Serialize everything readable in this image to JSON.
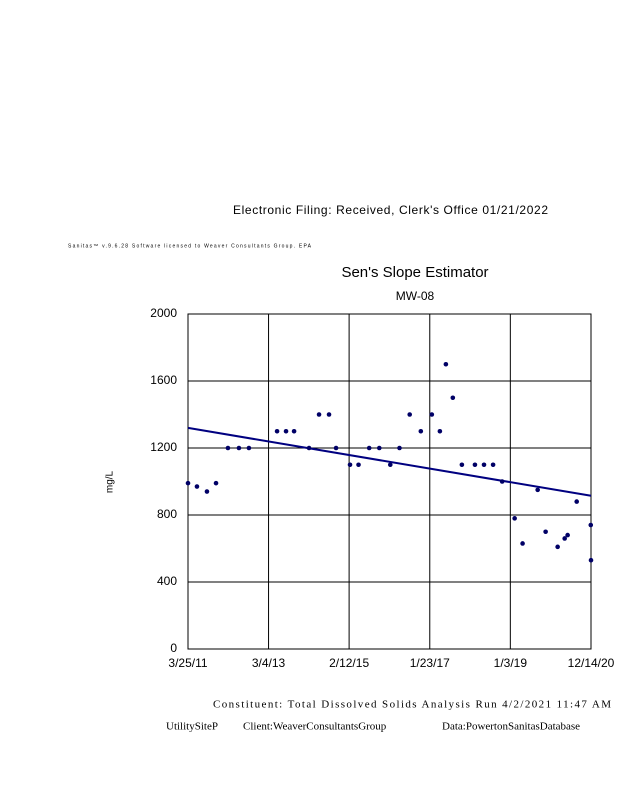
{
  "header": {
    "filing": "Electronic Filing: Received, Clerk's Office 01/21/2022",
    "software": "Sanitas™ v.9.6.28 Software licensed to Weaver Consultants Group. EPA"
  },
  "chart_data": {
    "type": "scatter",
    "title": "Sen's Slope Estimator",
    "subtitle": "MW-08",
    "y_label": "mg/L",
    "color": "#000066",
    "grid": true,
    "x": [
      "2011-03-25",
      "2011-06-12",
      "2011-09-08",
      "2011-11-27",
      "2012-03-11",
      "2012-06-16",
      "2012-09-12",
      "2013-05-18",
      "2013-08-05",
      "2013-10-15",
      "2014-02-24",
      "2014-05-23",
      "2014-08-19",
      "2014-10-20",
      "2015-02-20",
      "2015-05-06",
      "2015-08-08",
      "2015-11-05",
      "2016-02-10",
      "2016-05-01",
      "2016-07-30",
      "2016-11-05",
      "2017-02-10",
      "2017-04-22",
      "2017-06-14",
      "2017-08-14",
      "2017-11-02",
      "2018-02-25",
      "2018-05-16",
      "2018-08-04",
      "2018-10-23",
      "2019-02-10",
      "2019-04-21",
      "2019-09-01",
      "2019-11-10",
      "2020-02-24",
      "2020-04-26",
      "2020-05-22",
      "2020-08-10",
      "2020-12-12",
      "2020-12-14"
    ],
    "values": [
      990,
      970,
      940,
      990,
      1200,
      1200,
      1200,
      1300,
      1300,
      1300,
      1200,
      1400,
      1400,
      1200,
      1100,
      1100,
      1200,
      1200,
      1100,
      1200,
      1400,
      1300,
      1400,
      1300,
      1700,
      1500,
      1100,
      1100,
      1100,
      1100,
      1000,
      780,
      630,
      950,
      700,
      610,
      660,
      680,
      880,
      740,
      530
    ],
    "trend": {
      "color": "#000080",
      "x": [
        "2011-03-25",
        "2020-12-14"
      ],
      "values": [
        1320,
        915
      ]
    },
    "xlim": [
      "2011-03-25",
      "2020-12-14"
    ],
    "xticks": [
      {
        "value": "2011-03-25",
        "label": "3/25/11"
      },
      {
        "value": "2013-03-04",
        "label": "3/4/13"
      },
      {
        "value": "2015-02-12",
        "label": "2/12/15"
      },
      {
        "value": "2017-01-23",
        "label": "1/23/17"
      },
      {
        "value": "2019-01-03",
        "label": "1/3/19"
      },
      {
        "value": "2020-12-14",
        "label": "12/14/20"
      }
    ],
    "ylim": [
      0,
      2000
    ],
    "yticks": [
      0,
      400,
      800,
      1200,
      1600,
      2000
    ]
  },
  "footer": {
    "line1": "Constituent: Total Dissolved Solids Analysis Run 4/2/2021 11:47 AM",
    "site": "UtilitySiteP",
    "client": "Client:WeaverConsultantsGroup",
    "database": "Data:PowertonSanitasDatabase"
  }
}
